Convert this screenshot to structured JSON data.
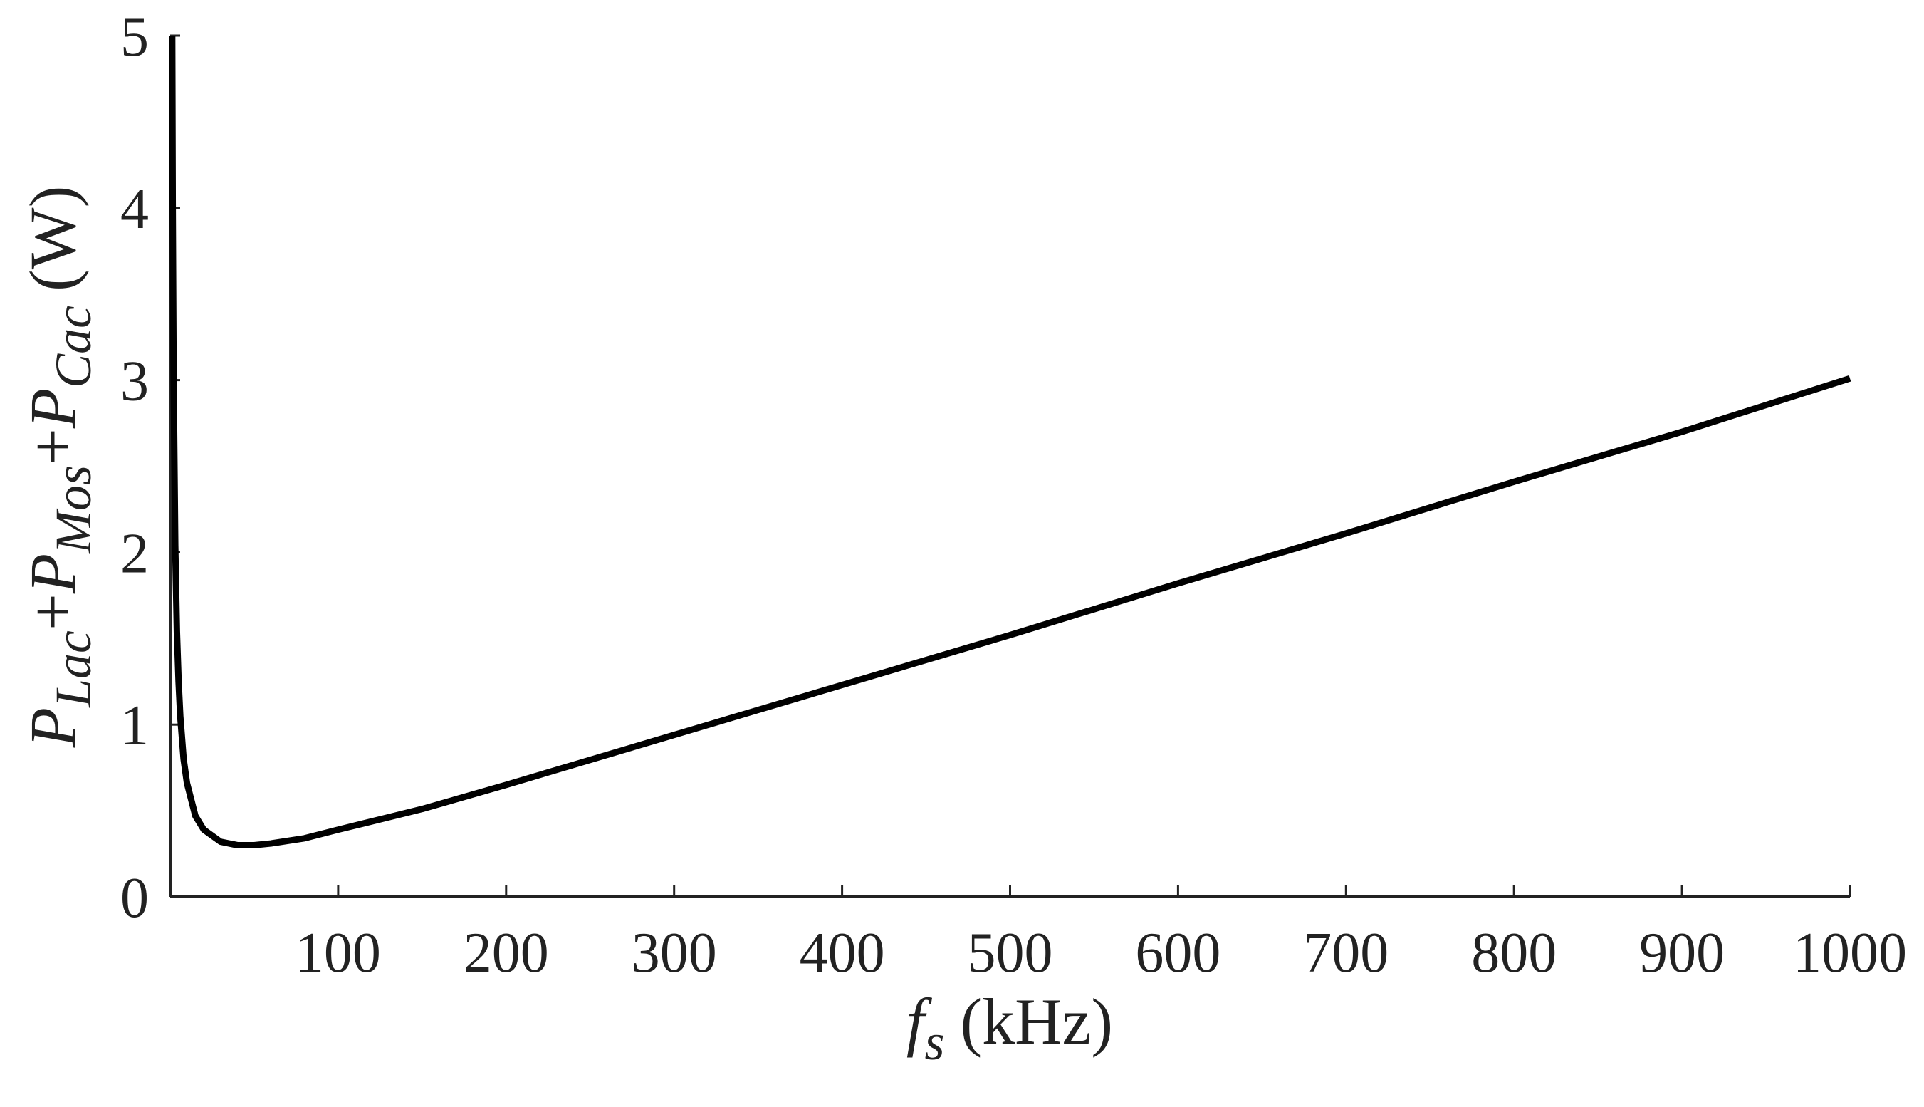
{
  "chart_data": {
    "type": "line",
    "xlabel": [
      "f",
      "s",
      "(kHz)"
    ],
    "ylabel": [
      "P",
      "Lac",
      "+",
      "P",
      "Mos",
      "+",
      "P",
      "Cac",
      "(W)"
    ],
    "x": [
      1.2,
      1.5,
      2,
      3,
      4,
      5,
      6,
      8,
      10,
      15,
      20,
      30,
      40,
      50,
      60,
      80,
      100,
      150,
      200,
      300,
      400,
      500,
      600,
      700,
      800,
      900,
      1000
    ],
    "series": [
      {
        "color": "#000000",
        "values": [
          5.0,
          4.03,
          3.04,
          2.04,
          1.54,
          1.25,
          1.05,
          0.8,
          0.66,
          0.47,
          0.39,
          0.32,
          0.3,
          0.3,
          0.31,
          0.34,
          0.39,
          0.51,
          0.65,
          0.94,
          1.23,
          1.52,
          1.82,
          2.11,
          2.41,
          2.7,
          3.01
        ]
      }
    ],
    "xlim": [
      0,
      1000
    ],
    "xticks": [
      100,
      200,
      300,
      400,
      500,
      600,
      700,
      800,
      900,
      1000
    ],
    "ylim": [
      0,
      5
    ],
    "yticks": [
      0,
      1,
      2,
      3,
      4,
      5
    ]
  }
}
